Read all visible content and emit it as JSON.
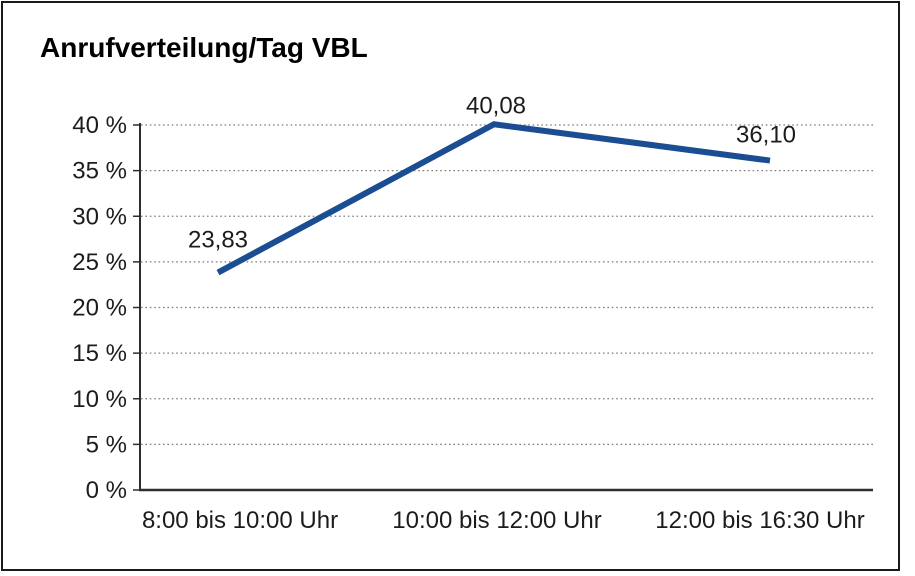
{
  "frame": {
    "border_color": "#1a1a1a",
    "background": "#ffffff"
  },
  "chart_data": {
    "type": "line",
    "title": "Anrufverteilung/Tag VBL",
    "categories": [
      "8:00 bis 10:00 Uhr",
      "10:00 bis 12:00 Uhr",
      "12:00 bis 16:30 Uhr"
    ],
    "values": [
      23.83,
      40.08,
      36.1
    ],
    "value_labels": [
      "23,83",
      "40,08",
      "36,10"
    ],
    "unit": "%",
    "xlabel": "",
    "ylabel": "",
    "yticks": [
      0,
      5,
      10,
      15,
      20,
      25,
      30,
      35,
      40
    ],
    "ytick_labels": [
      "0 %",
      "5 %",
      "10 %",
      "15 %",
      "20 %",
      "25 %",
      "30 %",
      "35 %",
      "40 %"
    ],
    "ylim": [
      0,
      40
    ],
    "grid": "horizontal-dotted",
    "legend_position": "none",
    "line_color": "#1a4d92",
    "axis_color": "#2e2e2e",
    "grid_color": "#7d7d7d",
    "text_color": "#1c1c1c"
  }
}
